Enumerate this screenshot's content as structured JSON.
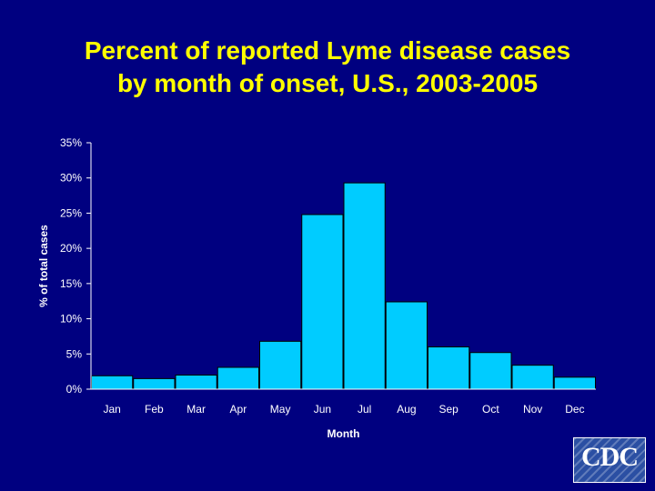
{
  "title": {
    "line1": "Percent of reported Lyme disease cases",
    "line2": "by month of onset, U.S., 2003-2005"
  },
  "colors": {
    "background": "#000080",
    "title": "#ffff00",
    "bar_fill": "#00ccff",
    "bar_stroke": "#000000",
    "axis": "#ffffff"
  },
  "chart_data": {
    "type": "bar",
    "categories": [
      "Jan",
      "Feb",
      "Mar",
      "Apr",
      "May",
      "Jun",
      "Jul",
      "Aug",
      "Sep",
      "Oct",
      "Nov",
      "Dec"
    ],
    "values": [
      1.9,
      1.5,
      2.0,
      3.1,
      6.8,
      24.8,
      29.3,
      12.4,
      6.0,
      5.2,
      3.4,
      1.7
    ],
    "xlabel": "Month",
    "ylabel": "% of total cases",
    "ylim": [
      0,
      35
    ],
    "yticks": [
      "0%",
      "5%",
      "10%",
      "15%",
      "20%",
      "25%",
      "30%",
      "35%"
    ],
    "grid": false,
    "legend": "none"
  },
  "logo": {
    "text": "CDC"
  }
}
